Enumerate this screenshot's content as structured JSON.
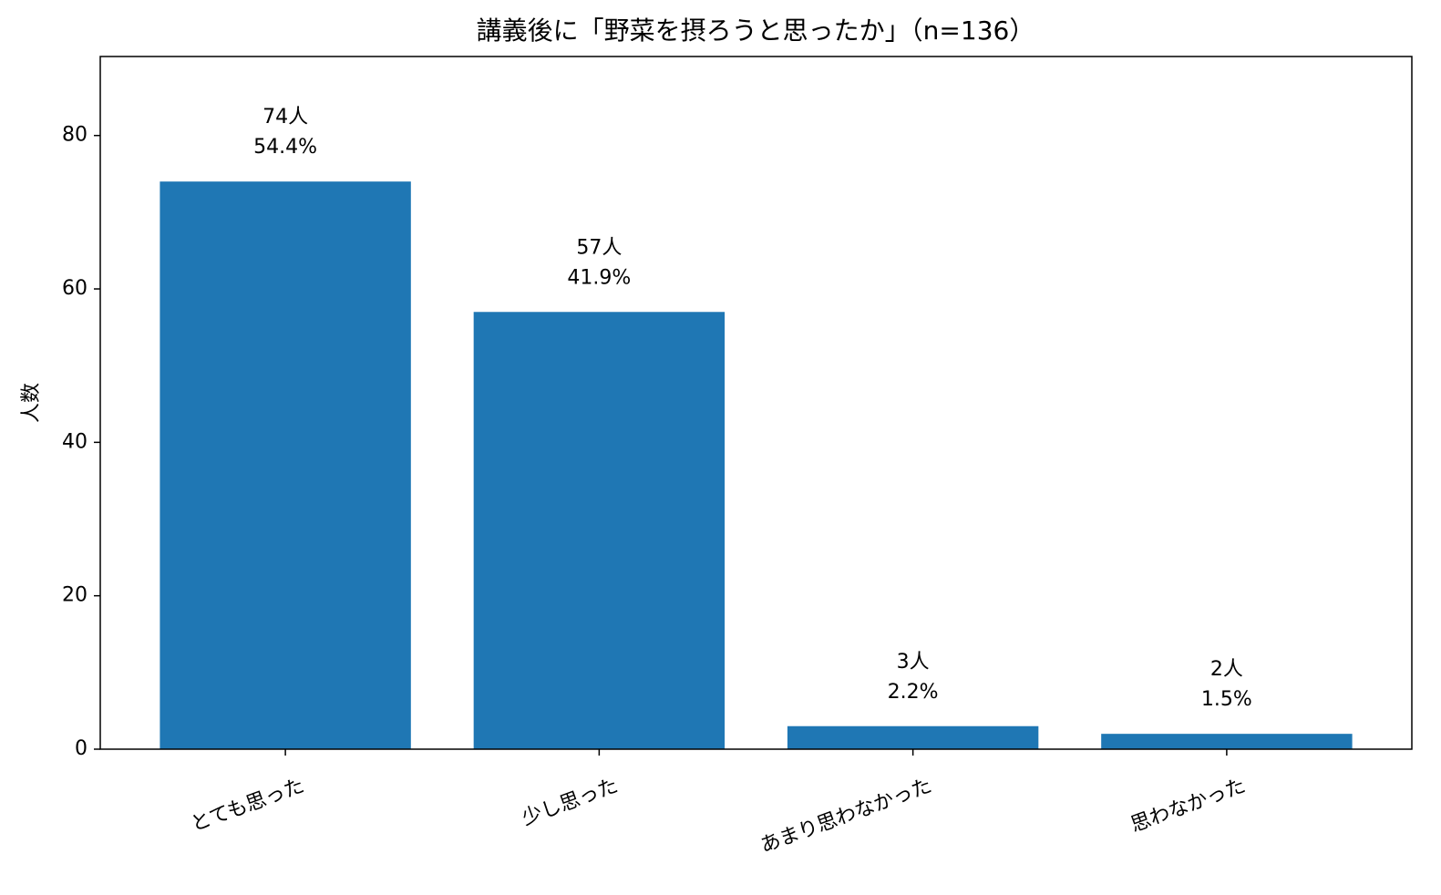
{
  "chart_data": {
    "type": "bar",
    "title": "講義後に「野菜を摂ろうと思ったか」（n=136）",
    "y_label": "人数",
    "categories": [
      "とても思った",
      "少し思った",
      "あまり思わなかった",
      "思わなかった"
    ],
    "values": [
      74,
      57,
      3,
      2
    ],
    "value_labels": [
      "74人",
      "57人",
      "3人",
      "2人"
    ],
    "percentages": [
      54.4,
      41.9,
      2.2,
      1.5
    ],
    "percentage_labels": [
      "54.4%",
      "41.9%",
      "2.2%",
      "1.5%"
    ],
    "color": "#1f77b4",
    "ylim": [
      0,
      90.3
    ],
    "yticks": [
      0,
      20,
      40,
      60,
      80
    ]
  }
}
